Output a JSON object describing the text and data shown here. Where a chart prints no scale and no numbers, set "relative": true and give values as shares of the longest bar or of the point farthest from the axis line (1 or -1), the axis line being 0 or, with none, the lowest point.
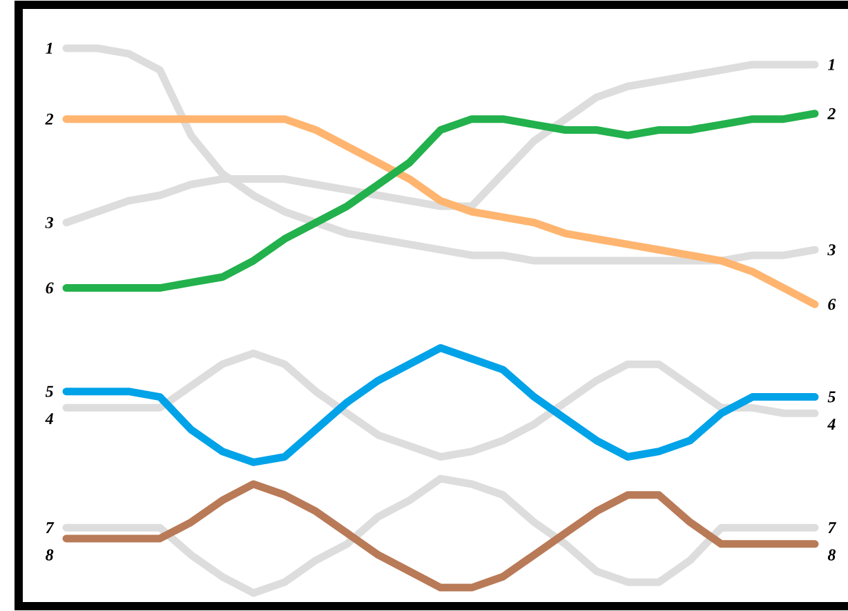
{
  "chart_data": {
    "type": "line",
    "categories": [
      null,
      null,
      null,
      null,
      null,
      null,
      null,
      null,
      null,
      null,
      null,
      null,
      null,
      null,
      null,
      null,
      null,
      null,
      null,
      null,
      null,
      null,
      null,
      null,
      null
    ],
    "relative": true,
    "annotations": [
      "1",
      "2",
      "3",
      "6",
      "5",
      "4",
      "7",
      "8",
      "1",
      "2",
      "3",
      "6",
      "5",
      "4",
      "7",
      "8"
    ],
    "series": [
      {
        "color": "#dddddd",
        "values": [
          1.0,
          1.0,
          0.99,
          0.96,
          0.84,
          0.77,
          0.73,
          0.7,
          0.68,
          0.66,
          0.65,
          0.64,
          0.63,
          0.62,
          0.62,
          0.61,
          0.61,
          0.61,
          0.61,
          0.61,
          0.61,
          0.61,
          0.62,
          0.62,
          0.63
        ]
      },
      {
        "color": "#dddddd",
        "values": [
          0.68,
          0.7,
          0.72,
          0.73,
          0.75,
          0.76,
          0.76,
          0.76,
          0.75,
          0.74,
          0.73,
          0.72,
          0.71,
          0.71,
          0.77,
          0.83,
          0.87,
          0.91,
          0.93,
          0.94,
          0.95,
          0.96,
          0.97,
          0.97,
          0.97
        ]
      },
      {
        "color": "#dddddd",
        "values": [
          0.34,
          0.34,
          0.34,
          0.34,
          0.38,
          0.42,
          0.44,
          0.42,
          0.37,
          0.33,
          0.29,
          0.27,
          0.25,
          0.26,
          0.28,
          0.31,
          0.35,
          0.39,
          0.42,
          0.42,
          0.38,
          0.34,
          0.34,
          0.33,
          0.33
        ]
      },
      {
        "color": "#dddddd",
        "values": [
          0.12,
          0.12,
          0.12,
          0.12,
          0.07,
          0.03,
          0.0,
          0.02,
          0.06,
          0.09,
          0.14,
          0.17,
          0.21,
          0.2,
          0.18,
          0.13,
          0.09,
          0.04,
          0.02,
          0.02,
          0.06,
          0.12,
          0.12,
          0.12,
          0.12
        ]
      },
      {
        "color": "#ffb570",
        "values": [
          0.87,
          0.87,
          0.87,
          0.87,
          0.87,
          0.87,
          0.87,
          0.87,
          0.85,
          0.82,
          0.79,
          0.76,
          0.72,
          0.7,
          0.69,
          0.68,
          0.66,
          0.65,
          0.64,
          0.63,
          0.62,
          0.61,
          0.59,
          0.56,
          0.53
        ]
      },
      {
        "color": "#22b14c",
        "values": [
          0.56,
          0.56,
          0.56,
          0.56,
          0.57,
          0.58,
          0.61,
          0.65,
          0.68,
          0.71,
          0.75,
          0.79,
          0.85,
          0.87,
          0.87,
          0.86,
          0.85,
          0.85,
          0.84,
          0.85,
          0.85,
          0.86,
          0.87,
          0.87,
          0.88
        ]
      },
      {
        "color": "#00a2e8",
        "values": [
          0.37,
          0.37,
          0.37,
          0.36,
          0.3,
          0.26,
          0.24,
          0.25,
          0.3,
          0.35,
          0.39,
          0.42,
          0.45,
          0.43,
          0.41,
          0.36,
          0.32,
          0.28,
          0.25,
          0.26,
          0.28,
          0.33,
          0.36,
          0.36,
          0.36
        ]
      },
      {
        "color": "#b97a57",
        "values": [
          0.1,
          0.1,
          0.1,
          0.1,
          0.13,
          0.17,
          0.2,
          0.18,
          0.15,
          0.11,
          0.07,
          0.04,
          0.01,
          0.01,
          0.03,
          0.07,
          0.11,
          0.15,
          0.18,
          0.18,
          0.13,
          0.09,
          0.09,
          0.09,
          0.09
        ]
      }
    ]
  }
}
